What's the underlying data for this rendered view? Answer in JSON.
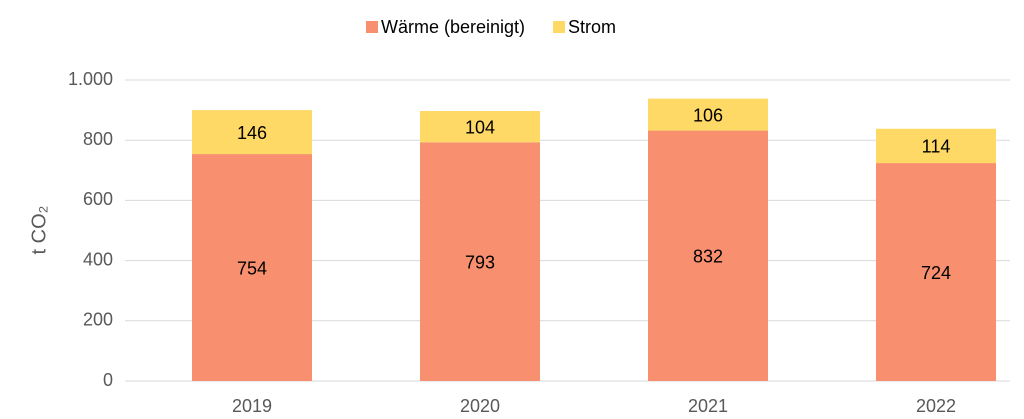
{
  "chart_data": {
    "type": "bar",
    "stacked": true,
    "categories": [
      "2019",
      "2020",
      "2021",
      "2022"
    ],
    "series": [
      {
        "name": "Wärme (bereinigt)",
        "color": "#f8906f",
        "values": [
          754,
          793,
          832,
          724
        ]
      },
      {
        "name": "Strom",
        "color": "#ffd966",
        "values": [
          146,
          104,
          106,
          114
        ]
      }
    ],
    "y_label": "t CO₂",
    "ylim": [
      0,
      1000
    ],
    "yticks": [
      0,
      200,
      400,
      600,
      800,
      {
        "value": 1000,
        "label": "1.000"
      }
    ],
    "grid": true,
    "legend": "top"
  }
}
